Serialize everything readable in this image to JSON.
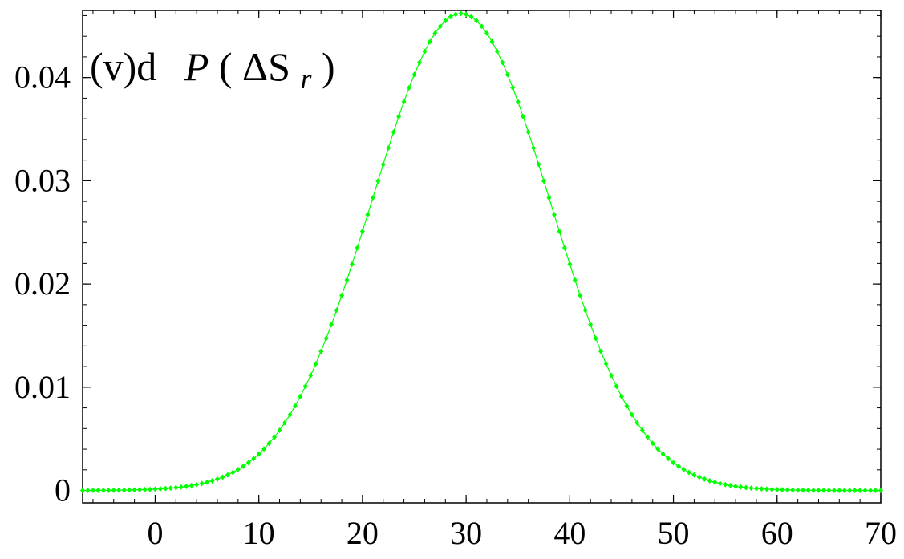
{
  "chart_data": {
    "type": "line",
    "title": "",
    "panel_label": {
      "prefix": "(v)d",
      "func": "P",
      "open": "(",
      "delta": "ΔS",
      "sub": "r",
      "close": ")"
    },
    "xlabel": "",
    "ylabel": "",
    "xlim": [
      -7,
      70
    ],
    "ylim": [
      -0.0012,
      0.0465
    ],
    "x_ticks": [
      0,
      10,
      20,
      30,
      40,
      50,
      60,
      70
    ],
    "x_tick_labels": [
      "0",
      "10",
      "20",
      "30",
      "40",
      "50",
      "60",
      "70"
    ],
    "y_ticks": [
      0,
      0.01,
      0.02,
      0.03,
      0.04
    ],
    "y_tick_labels": [
      "0",
      "0.01",
      "0.02",
      "0.03",
      "0.04"
    ],
    "grid": false,
    "legend": "none",
    "series": [
      {
        "color": "#00ff00",
        "marker": "diamond",
        "distribution": "gaussian",
        "peak_x": 29.5,
        "peak_y": 0.0462,
        "sigma": 8.6,
        "x_start": -7,
        "x_end": 70,
        "x_step": 0.5
      }
    ]
  }
}
